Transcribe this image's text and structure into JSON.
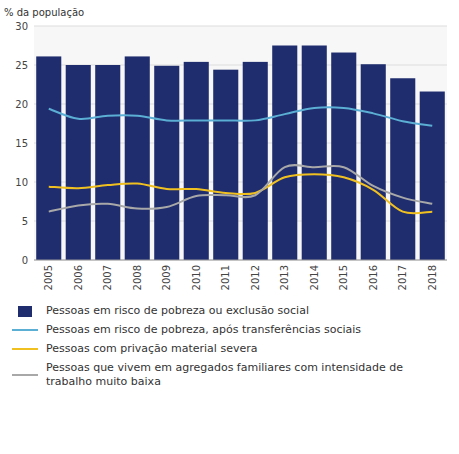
{
  "chart_data": {
    "type": "bar",
    "ylabel": "% da população",
    "categories": [
      "2005",
      "2006",
      "2007",
      "2008",
      "2009",
      "2010",
      "2011",
      "2012",
      "2013",
      "2014",
      "2015",
      "2016",
      "2017",
      "2018"
    ],
    "series": [
      {
        "name": "Pessoas em risco de pobreza ou exclusão social",
        "type": "bar",
        "color": "#1f2d6e",
        "values": [
          26.1,
          25.0,
          25.0,
          26.1,
          24.9,
          25.4,
          24.4,
          25.4,
          27.5,
          27.5,
          26.6,
          25.1,
          23.3,
          21.6
        ]
      },
      {
        "name": "Pessoas em risco de pobreza, após transferências sociais",
        "type": "line",
        "color": "#5baed4",
        "values": [
          19.4,
          18.1,
          18.5,
          18.5,
          17.9,
          17.9,
          17.9,
          17.9,
          18.7,
          19.5,
          19.5,
          18.8,
          17.8,
          17.2
        ]
      },
      {
        "name": "Pessoas com privação material severa",
        "type": "line",
        "color": "#f0c020",
        "values": [
          9.4,
          9.2,
          9.6,
          9.8,
          9.1,
          9.1,
          8.6,
          8.6,
          10.6,
          11.0,
          10.6,
          9.0,
          6.2,
          6.2
        ]
      },
      {
        "name": "Pessoas que vivem em agregados familiares com intensidade de trabalho muito baixa",
        "type": "line",
        "color": "#a8a8a8",
        "values": [
          6.2,
          7.0,
          7.2,
          6.6,
          6.8,
          8.2,
          8.3,
          8.3,
          11.9,
          11.9,
          11.9,
          9.5,
          8.0,
          7.2
        ]
      }
    ],
    "ylim": [
      0,
      30
    ],
    "yticks": [
      0,
      5,
      10,
      15,
      20,
      25,
      30
    ],
    "grid": true,
    "legend": "bottom"
  }
}
